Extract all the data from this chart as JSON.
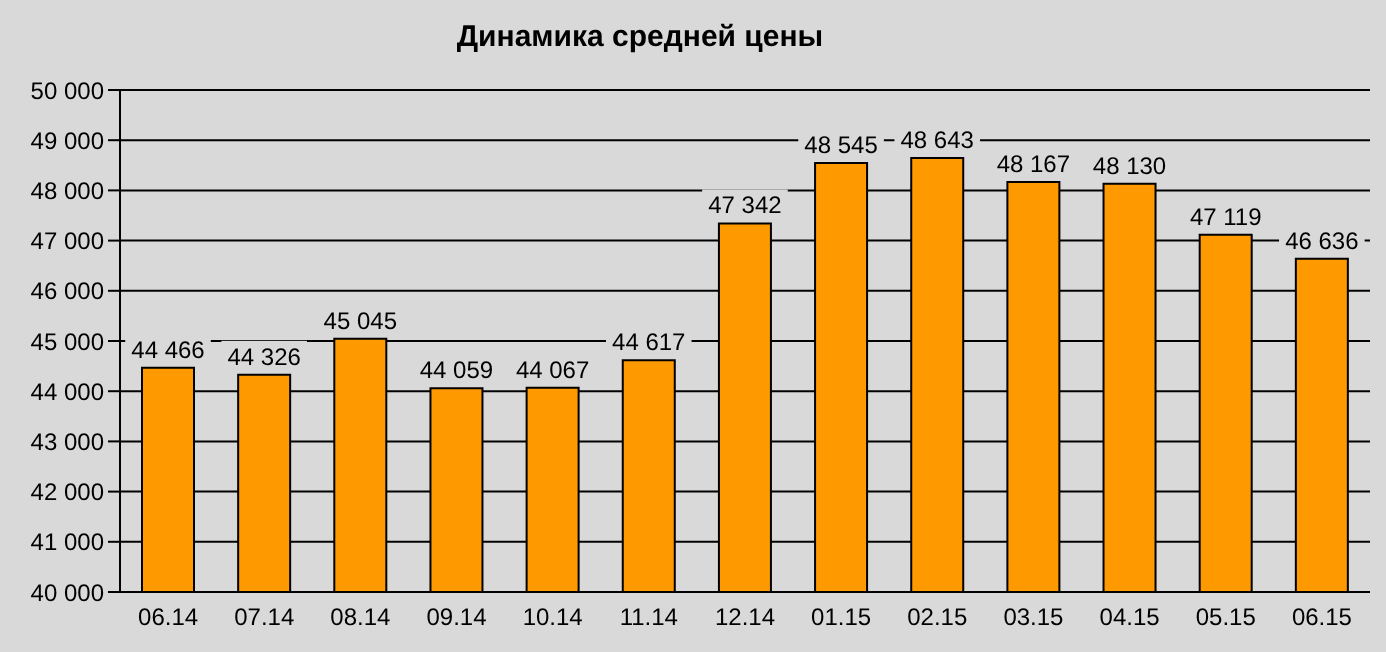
{
  "chart_data": {
    "type": "bar",
    "title": "Динамика средней цены",
    "categories": [
      "06.14",
      "07.14",
      "08.14",
      "09.14",
      "10.14",
      "11.14",
      "12.14",
      "01.15",
      "02.15",
      "03.15",
      "04.15",
      "05.15",
      "06.15"
    ],
    "values": [
      44466,
      44326,
      45045,
      44059,
      44067,
      44617,
      47342,
      48545,
      48643,
      48167,
      48130,
      47119,
      46636
    ],
    "value_labels": [
      "44 466",
      "44 326",
      "45 045",
      "44 059",
      "44 067",
      "44 617",
      "47 342",
      "48 545",
      "48 643",
      "48 167",
      "48 130",
      "47 119",
      "46 636"
    ],
    "color": "#ff9900",
    "ylim": [
      40000,
      50000
    ],
    "yticks": [
      {
        "value": 40000,
        "label": "40 000"
      },
      {
        "value": 41000,
        "label": "41 000"
      },
      {
        "value": 42000,
        "label": "42 000"
      },
      {
        "value": 43000,
        "label": "43 000"
      },
      {
        "value": 44000,
        "label": "44 000"
      },
      {
        "value": 45000,
        "label": "45 000"
      },
      {
        "value": 46000,
        "label": "46 000"
      },
      {
        "value": 47000,
        "label": "47 000"
      },
      {
        "value": 48000,
        "label": "48 000"
      },
      {
        "value": 49000,
        "label": "49 000"
      },
      {
        "value": 50000,
        "label": "50 000"
      }
    ],
    "grid": "y",
    "legend": false
  }
}
